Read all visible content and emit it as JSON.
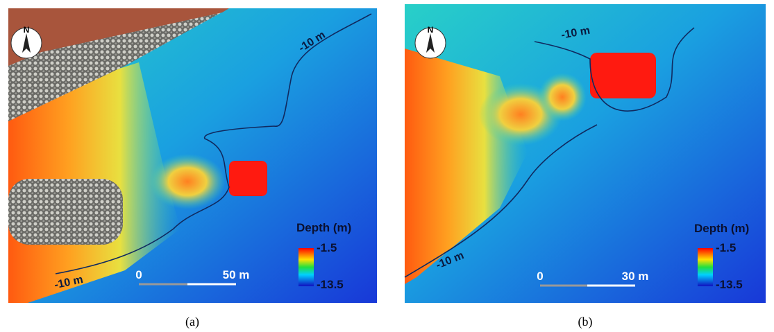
{
  "panels": [
    {
      "caption": "(a)",
      "north": "N",
      "contour_labels": [
        "-10 m",
        "-10 m"
      ],
      "legend": {
        "title": "Depth (m)",
        "max": "-1.5",
        "min": "-13.5"
      },
      "scale_bar": {
        "start": "0",
        "end": "50 m"
      }
    },
    {
      "caption": "(b)",
      "north": "N",
      "contour_labels": [
        "-10 m",
        "-10 m"
      ],
      "legend": {
        "title": "Depth (m)",
        "max": "-1.5",
        "min": "-13.5"
      },
      "scale_bar": {
        "start": "0",
        "end": "30 m"
      }
    }
  ]
}
